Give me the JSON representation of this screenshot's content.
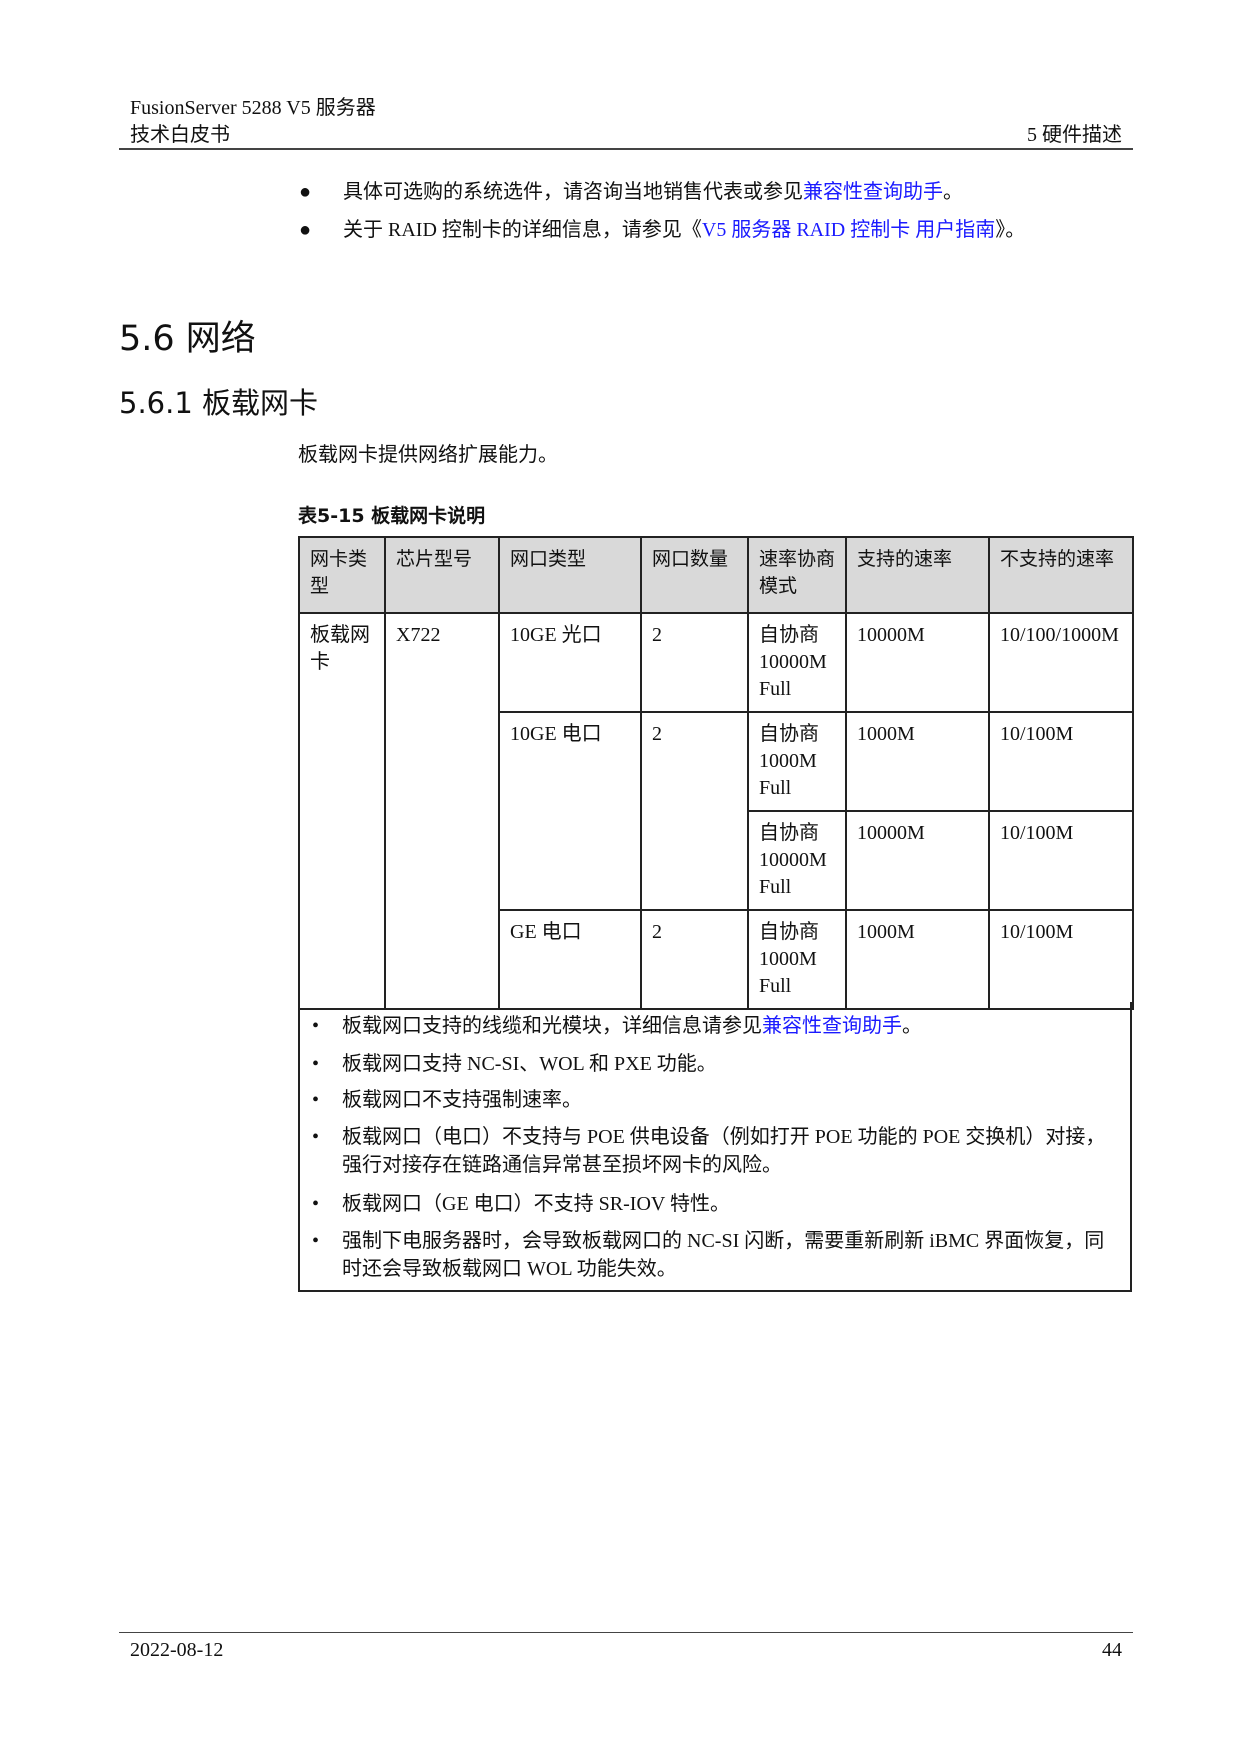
{
  "header": {
    "product": "FusionServer 5288 V5  服务器",
    "doc_type": "技术白皮书",
    "chapter": "5  硬件描述"
  },
  "intro_bullets": [
    {
      "pre": "具体可选购的系统选件，请咨询当地销售代表或参见",
      "link": "兼容性查询助手",
      "post": "。"
    },
    {
      "pre": "关于 RAID 控制卡的详细信息，请参见《",
      "link": "V5 服务器  RAID 控制卡  用户指南",
      "post": "》。"
    }
  ],
  "section_title": "5.6 网络",
  "subsection_title": "5.6.1 板载网卡",
  "paragraph": "板载网卡提供网络扩展能力。",
  "table_caption": "表5-15 板载网卡说明",
  "table": {
    "headers": [
      "网卡类型",
      "芯片型号",
      "网口类型",
      "网口数量",
      "速率协商模式",
      "支持的速率",
      "不支持的速率"
    ],
    "nic_type": "板载网卡",
    "chip": "X722",
    "groups": [
      {
        "port_type": "10GE 光口",
        "count": "2",
        "rows": [
          {
            "mode": "自协商 10000M Full",
            "supported": "10000M",
            "unsupported": "10/100/1000M"
          }
        ]
      },
      {
        "port_type": "10GE 电口",
        "count": "2",
        "rows": [
          {
            "mode": "自协商 1000M Full",
            "supported": "1000M",
            "unsupported": "10/100M"
          },
          {
            "mode": "自协商 10000M Full",
            "supported": "10000M",
            "unsupported": "10/100M"
          }
        ]
      },
      {
        "port_type": "GE 电口",
        "count": "2",
        "rows": [
          {
            "mode": "自协商 1000M Full",
            "supported": "1000M",
            "unsupported": "10/100M"
          }
        ]
      }
    ]
  },
  "notes": [
    {
      "pre": "板载网口支持的线缆和光模块，详细信息请参见",
      "link": "兼容性查询助手",
      "post": "。"
    },
    {
      "pre": "板载网口支持 NC-SI、WOL 和 PXE 功能。"
    },
    {
      "pre": "板载网口不支持强制速率。"
    },
    {
      "pre": "板载网口（电口）不支持与 POE 供电设备（例如打开 POE 功能的 POE 交换机）对接，强行对接存在链路通信异常甚至损坏网卡的风险。"
    },
    {
      "pre": "板载网口（GE 电口）不支持 SR-IOV 特性。"
    },
    {
      "pre": "强制下电服务器时，会导致板载网口的 NC-SI 闪断，需要重新刷新 iBMC 界面恢复，同时还会导致板载网口 WOL 功能失效。"
    }
  ],
  "footer": {
    "date": "2022-08-12",
    "page": "44"
  },
  "colors": {
    "link": "#1a1aff",
    "table_header_bg": "#d9d9d9"
  }
}
